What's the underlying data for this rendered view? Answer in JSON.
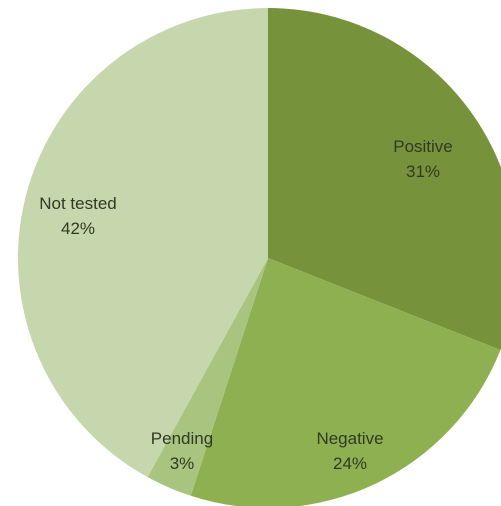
{
  "chart_data": {
    "type": "pie",
    "title": "",
    "slices": [
      {
        "label": "Positive",
        "value": 31,
        "value_label": "31%",
        "color": "#76933c"
      },
      {
        "label": "Negative",
        "value": 24,
        "value_label": "24%",
        "color": "#8fb051"
      },
      {
        "label": "Pending",
        "value": 3,
        "value_label": "3%",
        "color": "#a9c47f"
      },
      {
        "label": "Not tested",
        "value": 42,
        "value_label": "42%",
        "color": "#c6d7ad"
      }
    ],
    "start_angle_deg": 0,
    "direction": "clockwise",
    "legend": "none"
  }
}
